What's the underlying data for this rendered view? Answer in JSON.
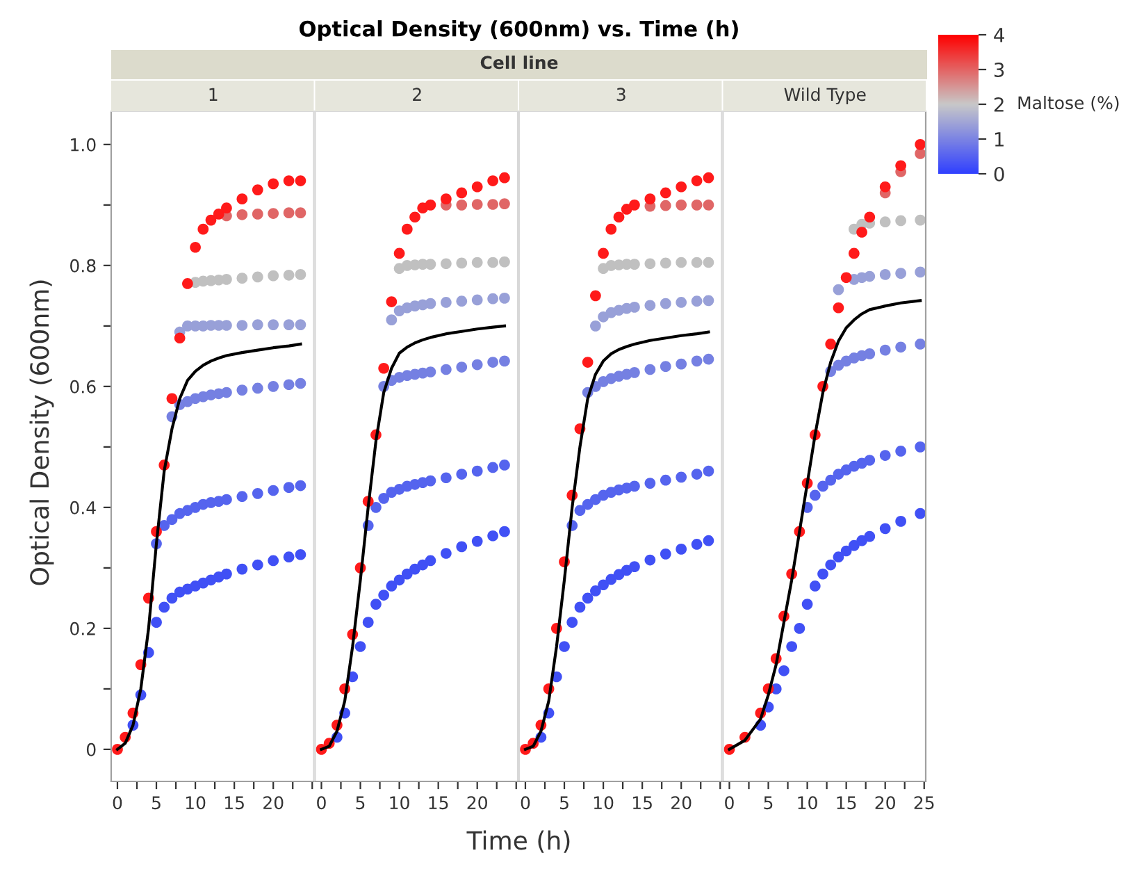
{
  "chart_data": [
    {
      "type": "scatter",
      "title": "1",
      "annotations": [
        "Optical Density (600nm) vs. Time (h)",
        "Cell line",
        "Time (h)"
      ],
      "ylabel": "Optical Density (600nm)",
      "marker": "circle",
      "tick_labels": "xy",
      "xlim": [
        -0.8,
        25.2
      ],
      "xticks": [
        0,
        {
          "value": 2.5,
          "label": null
        },
        5,
        {
          "value": 7.5,
          "label": null
        },
        10,
        {
          "value": 12.5,
          "label": null
        },
        15,
        {
          "value": 17.5,
          "label": null
        },
        20,
        {
          "value": 22.5,
          "label": null
        },
        {
          "value": 25,
          "label": null
        }
      ],
      "ylim": [
        -0.053,
        1.055
      ],
      "yticks": [
        0,
        {
          "value": 0.1,
          "label": null
        },
        0.2,
        {
          "value": 0.3,
          "label": null
        },
        0.4,
        {
          "value": 0.5,
          "label": null
        },
        0.6,
        {
          "value": 0.7,
          "label": null
        },
        0.8,
        {
          "value": 0.9,
          "label": null
        },
        {
          "value": 1.0,
          "label": "1.0"
        }
      ],
      "x": [
        0,
        1,
        2,
        3,
        4,
        5,
        6,
        7,
        8,
        9,
        10,
        11,
        12,
        13,
        14,
        16,
        18,
        20,
        22,
        23.5
      ],
      "series": [
        {
          "color": "#ff1a1a",
          "values": [
            0,
            0.02,
            0.06,
            0.14,
            0.25,
            0.36,
            0.47,
            0.58,
            0.68,
            0.77,
            0.83,
            0.86,
            0.875,
            0.885,
            0.895,
            0.91,
            0.925,
            0.935,
            0.94,
            0.94
          ]
        },
        {
          "color": "#e06666",
          "values": [
            null,
            null,
            null,
            null,
            null,
            null,
            null,
            null,
            null,
            null,
            null,
            null,
            null,
            null,
            0.882,
            0.884,
            0.885,
            0.886,
            0.887,
            0.887
          ]
        },
        {
          "color": "#c0c0c0",
          "values": [
            null,
            null,
            null,
            null,
            null,
            null,
            null,
            null,
            null,
            null,
            0.772,
            0.774,
            0.775,
            0.776,
            0.777,
            0.779,
            0.781,
            0.783,
            0.784,
            0.785
          ]
        },
        {
          "color": "#98a0d8",
          "values": [
            null,
            null,
            null,
            null,
            null,
            null,
            null,
            null,
            0.69,
            0.7,
            0.7,
            0.7,
            0.701,
            0.701,
            0.701,
            0.701,
            0.702,
            0.702,
            0.702,
            0.702
          ]
        },
        {
          "color": "#7580e2",
          "values": [
            null,
            null,
            null,
            null,
            null,
            null,
            null,
            0.55,
            0.57,
            0.575,
            0.58,
            0.583,
            0.586,
            0.588,
            0.59,
            0.594,
            0.597,
            0.6,
            0.603,
            0.605
          ]
        },
        {
          "color": "#5564ee",
          "values": [
            null,
            null,
            null,
            null,
            null,
            0.34,
            0.37,
            0.38,
            0.39,
            0.395,
            0.4,
            0.405,
            0.408,
            0.41,
            0.413,
            0.418,
            0.423,
            0.428,
            0.433,
            0.436
          ]
        },
        {
          "color": "#4050f5",
          "values": [
            null,
            null,
            0.04,
            0.09,
            0.16,
            0.21,
            0.235,
            0.25,
            0.26,
            0.265,
            0.27,
            0.275,
            0.28,
            0.285,
            0.29,
            0.298,
            0.305,
            0.312,
            0.318,
            0.322
          ]
        },
        {
          "type": "line",
          "marker": "none",
          "color": "#000000",
          "values": [
            0,
            0.01,
            0.04,
            0.1,
            0.2,
            0.34,
            0.46,
            0.53,
            0.58,
            0.61,
            0.625,
            0.635,
            0.642,
            0.647,
            0.651,
            0.656,
            0.66,
            0.664,
            0.667,
            0.67
          ]
        }
      ]
    },
    {
      "type": "scatter",
      "title": "2",
      "marker": "circle",
      "tick_labels": "x",
      "xlim": [
        -0.8,
        25.2
      ],
      "xticks": [
        0,
        {
          "value": 2.5,
          "label": null
        },
        5,
        {
          "value": 7.5,
          "label": null
        },
        10,
        {
          "value": 12.5,
          "label": null
        },
        15,
        {
          "value": 17.5,
          "label": null
        },
        20,
        {
          "value": 22.5,
          "label": null
        },
        {
          "value": 25,
          "label": null
        }
      ],
      "ylim": [
        -0.053,
        1.055
      ],
      "x": [
        0,
        1,
        2,
        3,
        4,
        5,
        6,
        7,
        8,
        9,
        10,
        11,
        12,
        13,
        14,
        16,
        18,
        20,
        22,
        23.5
      ],
      "series": [
        {
          "color": "#ff1a1a",
          "values": [
            0,
            0.01,
            0.04,
            0.1,
            0.19,
            0.3,
            0.41,
            0.52,
            0.63,
            0.74,
            0.82,
            0.86,
            0.88,
            0.895,
            0.9,
            0.91,
            0.92,
            0.93,
            0.94,
            0.945
          ]
        },
        {
          "color": "#e06666",
          "values": [
            null,
            null,
            null,
            null,
            null,
            null,
            null,
            null,
            null,
            null,
            null,
            null,
            null,
            null,
            null,
            0.9,
            0.9,
            0.901,
            0.901,
            0.902
          ]
        },
        {
          "color": "#c0c0c0",
          "values": [
            null,
            null,
            null,
            null,
            null,
            null,
            null,
            null,
            null,
            null,
            0.795,
            0.8,
            0.801,
            0.802,
            0.802,
            0.803,
            0.804,
            0.805,
            0.805,
            0.806
          ]
        },
        {
          "color": "#98a0d8",
          "values": [
            null,
            null,
            null,
            null,
            null,
            null,
            null,
            null,
            null,
            0.71,
            0.725,
            0.73,
            0.733,
            0.735,
            0.737,
            0.739,
            0.741,
            0.743,
            0.745,
            0.746
          ]
        },
        {
          "color": "#7580e2",
          "values": [
            null,
            null,
            null,
            null,
            null,
            null,
            null,
            null,
            0.6,
            0.61,
            0.615,
            0.618,
            0.62,
            0.622,
            0.624,
            0.628,
            0.632,
            0.636,
            0.64,
            0.642
          ]
        },
        {
          "color": "#5564ee",
          "values": [
            null,
            null,
            null,
            null,
            null,
            null,
            0.37,
            0.4,
            0.415,
            0.425,
            0.43,
            0.435,
            0.438,
            0.441,
            0.444,
            0.449,
            0.455,
            0.46,
            0.466,
            0.47
          ]
        },
        {
          "color": "#4050f5",
          "values": [
            null,
            null,
            0.02,
            0.06,
            0.12,
            0.17,
            0.21,
            0.24,
            0.255,
            0.27,
            0.28,
            0.29,
            0.298,
            0.305,
            0.312,
            0.324,
            0.335,
            0.344,
            0.353,
            0.36
          ]
        },
        {
          "type": "line",
          "marker": "none",
          "color": "#000000",
          "values": [
            0,
            0.005,
            0.03,
            0.08,
            0.17,
            0.28,
            0.4,
            0.51,
            0.59,
            0.63,
            0.655,
            0.665,
            0.672,
            0.677,
            0.681,
            0.687,
            0.691,
            0.695,
            0.698,
            0.7
          ]
        }
      ]
    },
    {
      "type": "scatter",
      "title": "3",
      "marker": "circle",
      "tick_labels": "x",
      "xlim": [
        -0.8,
        25.2
      ],
      "xticks": [
        0,
        {
          "value": 2.5,
          "label": null
        },
        5,
        {
          "value": 7.5,
          "label": null
        },
        10,
        {
          "value": 12.5,
          "label": null
        },
        15,
        {
          "value": 17.5,
          "label": null
        },
        20,
        {
          "value": 22.5,
          "label": null
        },
        {
          "value": 25,
          "label": null
        }
      ],
      "ylim": [
        -0.053,
        1.055
      ],
      "x": [
        0,
        1,
        2,
        3,
        4,
        5,
        6,
        7,
        8,
        9,
        10,
        11,
        12,
        13,
        14,
        16,
        18,
        20,
        22,
        23.5
      ],
      "series": [
        {
          "color": "#ff1a1a",
          "values": [
            0,
            0.01,
            0.04,
            0.1,
            0.2,
            0.31,
            0.42,
            0.53,
            0.64,
            0.75,
            0.82,
            0.86,
            0.88,
            0.893,
            0.9,
            0.91,
            0.92,
            0.93,
            0.94,
            0.945
          ]
        },
        {
          "color": "#e06666",
          "values": [
            null,
            null,
            null,
            null,
            null,
            null,
            null,
            null,
            null,
            null,
            null,
            null,
            null,
            null,
            null,
            0.898,
            0.899,
            0.9,
            0.9,
            0.9
          ]
        },
        {
          "color": "#c0c0c0",
          "values": [
            null,
            null,
            null,
            null,
            null,
            null,
            null,
            null,
            null,
            null,
            0.795,
            0.8,
            0.801,
            0.802,
            0.802,
            0.803,
            0.804,
            0.805,
            0.805,
            0.805
          ]
        },
        {
          "color": "#98a0d8",
          "values": [
            null,
            null,
            null,
            null,
            null,
            null,
            null,
            null,
            null,
            0.7,
            0.715,
            0.722,
            0.726,
            0.729,
            0.731,
            0.734,
            0.737,
            0.739,
            0.741,
            0.742
          ]
        },
        {
          "color": "#7580e2",
          "values": [
            null,
            null,
            null,
            null,
            null,
            null,
            null,
            null,
            0.59,
            0.6,
            0.608,
            0.613,
            0.617,
            0.62,
            0.623,
            0.628,
            0.633,
            0.637,
            0.642,
            0.645
          ]
        },
        {
          "color": "#5564ee",
          "values": [
            null,
            null,
            null,
            null,
            null,
            null,
            0.37,
            0.395,
            0.405,
            0.413,
            0.42,
            0.425,
            0.429,
            0.432,
            0.435,
            0.44,
            0.445,
            0.45,
            0.455,
            0.46
          ]
        },
        {
          "color": "#4050f5",
          "values": [
            null,
            null,
            0.02,
            0.06,
            0.12,
            0.17,
            0.21,
            0.235,
            0.25,
            0.262,
            0.272,
            0.281,
            0.289,
            0.296,
            0.302,
            0.313,
            0.323,
            0.331,
            0.339,
            0.345
          ]
        },
        {
          "type": "line",
          "marker": "none",
          "color": "#000000",
          "values": [
            0,
            0.005,
            0.03,
            0.08,
            0.17,
            0.28,
            0.4,
            0.5,
            0.58,
            0.62,
            0.642,
            0.654,
            0.661,
            0.666,
            0.67,
            0.676,
            0.68,
            0.684,
            0.687,
            0.69
          ]
        }
      ]
    },
    {
      "type": "scatter",
      "title": "Wild Type",
      "marker": "circle",
      "tick_labels": "x",
      "clabel": "Maltose (%)",
      "clim": [
        0,
        4
      ],
      "cticks": [
        0,
        1,
        2,
        3,
        4
      ],
      "xlim": [
        -0.8,
        25.2
      ],
      "xticks": [
        0,
        {
          "value": 2.5,
          "label": null
        },
        5,
        {
          "value": 7.5,
          "label": null
        },
        10,
        {
          "value": 12.5,
          "label": null
        },
        15,
        {
          "value": 17.5,
          "label": null
        },
        20,
        {
          "value": 22.5,
          "label": null
        },
        25
      ],
      "ylim": [
        -0.053,
        1.055
      ],
      "x": [
        0,
        2,
        4,
        5,
        6,
        7,
        8,
        9,
        10,
        11,
        12,
        13,
        14,
        15,
        16,
        17,
        18,
        20,
        22,
        24.5
      ],
      "series": [
        {
          "color": "#ff1a1a",
          "values": [
            0,
            0.02,
            0.06,
            0.1,
            0.15,
            0.22,
            0.29,
            0.36,
            0.44,
            0.52,
            0.6,
            0.67,
            0.73,
            0.78,
            0.82,
            0.855,
            0.88,
            0.93,
            0.965,
            1.0
          ]
        },
        {
          "color": "#e06666",
          "values": [
            null,
            null,
            null,
            null,
            null,
            null,
            null,
            null,
            null,
            null,
            null,
            null,
            null,
            null,
            null,
            null,
            null,
            0.92,
            0.955,
            0.985
          ]
        },
        {
          "color": "#c0c0c0",
          "values": [
            null,
            null,
            null,
            null,
            null,
            null,
            null,
            null,
            null,
            null,
            null,
            null,
            null,
            null,
            0.86,
            0.868,
            0.87,
            0.872,
            0.874,
            0.875
          ]
        },
        {
          "color": "#98a0d8",
          "values": [
            null,
            null,
            null,
            null,
            null,
            null,
            null,
            null,
            null,
            null,
            null,
            null,
            0.76,
            null,
            0.777,
            0.78,
            0.782,
            0.785,
            0.787,
            0.789
          ]
        },
        {
          "color": "#7580e2",
          "values": [
            null,
            null,
            null,
            null,
            null,
            null,
            null,
            null,
            null,
            null,
            null,
            0.625,
            0.635,
            0.642,
            0.647,
            0.651,
            0.654,
            0.66,
            0.665,
            0.67
          ]
        },
        {
          "color": "#5564ee",
          "values": [
            null,
            null,
            null,
            null,
            null,
            null,
            null,
            null,
            0.4,
            0.42,
            0.435,
            0.445,
            0.455,
            0.462,
            0.468,
            0.473,
            0.478,
            0.486,
            0.493,
            0.5
          ]
        },
        {
          "color": "#4050f5",
          "values": [
            null,
            null,
            0.04,
            0.07,
            0.1,
            0.13,
            0.17,
            0.2,
            0.24,
            0.27,
            0.29,
            0.305,
            0.318,
            0.328,
            0.337,
            0.345,
            0.352,
            0.365,
            0.377,
            0.39
          ]
        },
        {
          "type": "line",
          "marker": "none",
          "color": "#000000",
          "values": [
            0,
            0.015,
            0.05,
            0.09,
            0.14,
            0.21,
            0.28,
            0.36,
            0.44,
            0.52,
            0.59,
            0.64,
            0.675,
            0.697,
            0.71,
            0.72,
            0.727,
            0.733,
            0.738,
            0.742
          ]
        }
      ]
    }
  ]
}
